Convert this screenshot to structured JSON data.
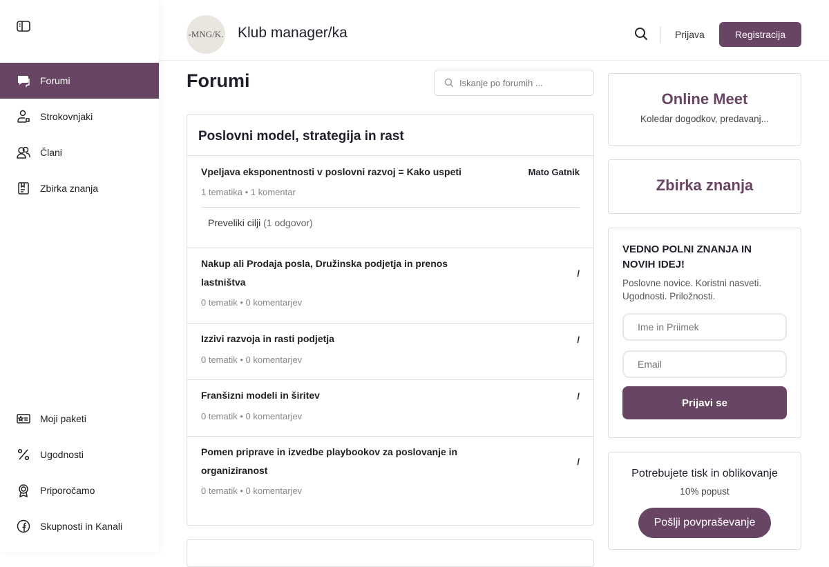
{
  "sidebar": {
    "top": [
      {
        "label": "Forumi",
        "icon": "chat-bubbles-icon",
        "active": true
      },
      {
        "label": "Strokovnjaki",
        "icon": "user-expert-icon"
      },
      {
        "label": "Člani",
        "icon": "users-icon"
      },
      {
        "label": "Zbirka znanja",
        "icon": "book-icon"
      }
    ],
    "bottom": [
      {
        "label": "Moji paketi",
        "icon": "card-star-icon"
      },
      {
        "label": "Ugodnosti",
        "icon": "percent-icon"
      },
      {
        "label": "Priporočamo",
        "icon": "award-icon"
      },
      {
        "label": "Skupnosti in Kanali",
        "icon": "facebook-icon"
      }
    ]
  },
  "header": {
    "logo_text": "-MNG/K.",
    "title": "Klub manager/ka",
    "login": "Prijava",
    "register": "Registracija"
  },
  "main": {
    "title": "Forumi",
    "search_placeholder": "Iskanje po forumih ...",
    "category": "Poslovni model, strategija in rast",
    "forums": [
      {
        "title": "Vpeljava eksponentnosti v poslovni razvoj = Kako uspeti",
        "meta": "1 tematika • 1 komentar",
        "last": "Mato Gatnik",
        "sub": {
          "title": "Preveliki cilji",
          "count": "(1 odgovor)"
        }
      },
      {
        "title": "Nakup ali Prodaja posla, Družinska podjetja in prenos lastništva",
        "meta": "0 tematik • 0 komentarjev",
        "last": "/"
      },
      {
        "title": "Izzivi razvoja in rasti podjetja",
        "meta": "0 tematik • 0 komentarjev",
        "last": "/"
      },
      {
        "title": "Franšizni modeli in širitev",
        "meta": "0 tematik • 0 komentarjev",
        "last": "/"
      },
      {
        "title": "Pomen priprave in izvedbe playbookov za poslovanje in organiziranost",
        "meta": "0 tematik • 0 komentarjev",
        "last": "/"
      }
    ]
  },
  "right": {
    "meet_title": "Online Meet",
    "meet_sub": "Koledar dogodkov, predavanj...",
    "zbirka": "Zbirka znanja",
    "news_title": "VEDNO POLNI ZNANJA IN NOVIH IDEJ!",
    "news_text": "Poslovne novice. Koristni nasveti. Ugodnosti. Priložnosti.",
    "name_ph": "Ime in Priimek",
    "email_ph": "Email",
    "subscribe": "Prijavi se",
    "print_title": "Potrebujete tisk in oblikovanje",
    "print_sub": "10% popust",
    "print_btn": "Pošlji povpraševanje"
  },
  "colors": {
    "accent": "#684663"
  }
}
